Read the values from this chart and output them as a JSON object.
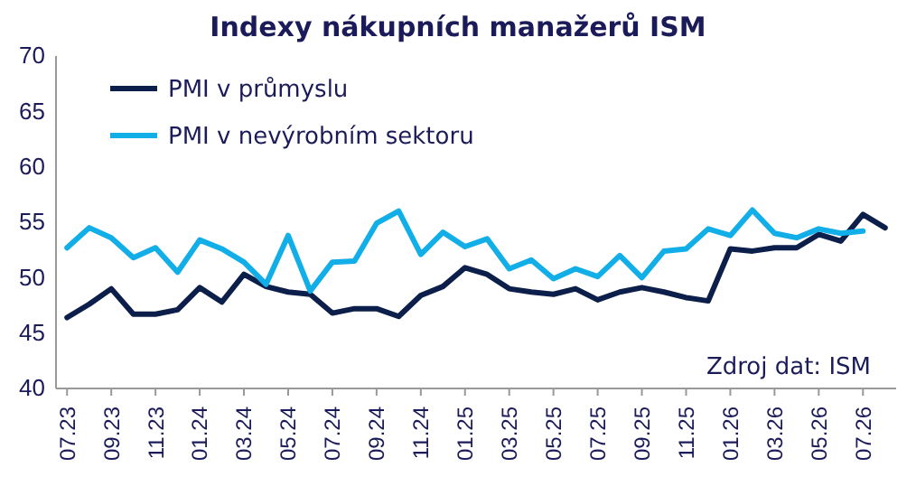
{
  "chart_data": {
    "type": "line",
    "title": "Indexy nákupních manažerů ISM",
    "categories": [
      "07.23",
      null,
      "09.23",
      null,
      "11.23",
      null,
      "01.24",
      null,
      "03.24",
      null,
      "05.24",
      null,
      "07.24",
      null,
      "09.24",
      null,
      "11.24",
      null,
      "01.25",
      null,
      "03.25",
      null,
      "05.25",
      null,
      "07.25",
      null,
      "09.25",
      null,
      "11.25",
      null,
      "01.26",
      null,
      "03.26",
      null,
      "05.26",
      null,
      "07.26",
      null
    ],
    "series": [
      {
        "name": "PMI v průmyslu",
        "color": "#0c1f4a",
        "values": [
          46.4,
          47.6,
          49.0,
          46.7,
          46.7,
          47.1,
          49.1,
          47.8,
          50.3,
          49.2,
          48.7,
          48.5,
          46.8,
          47.2,
          47.2,
          46.5,
          48.4,
          49.2,
          50.9,
          50.3,
          49.0,
          48.7,
          48.5,
          49.0,
          48.0,
          48.7,
          49.1,
          48.7,
          48.2,
          47.9,
          52.6,
          52.4,
          52.7,
          52.7,
          53.9,
          53.3,
          55.7,
          54.5
        ]
      },
      {
        "name": "PMI v nevýrobním sektoru",
        "color": "#12aee8",
        "values": [
          52.7,
          54.5,
          53.6,
          51.8,
          52.7,
          50.5,
          53.4,
          52.6,
          51.4,
          49.4,
          53.8,
          48.8,
          51.4,
          51.5,
          54.9,
          56.0,
          52.1,
          54.1,
          52.8,
          53.5,
          50.8,
          51.6,
          49.9,
          50.8,
          50.1,
          52.0,
          50.0,
          52.4,
          52.6,
          54.4,
          53.8,
          56.1,
          54.0,
          53.6,
          54.4,
          54.0,
          54.2,
          null
        ]
      }
    ],
    "ylim": [
      40,
      70
    ],
    "yticks": [
      40,
      45,
      50,
      55,
      60,
      65,
      70
    ],
    "legend": "top left",
    "marker": "none",
    "line_style": "solid",
    "annotations": [
      "Zdroj dat: ISM"
    ]
  }
}
